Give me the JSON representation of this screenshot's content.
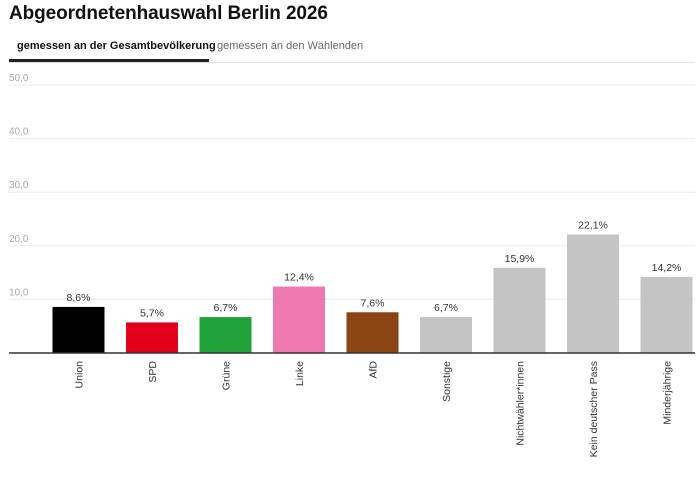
{
  "title": "Abgeordnetenhauswahl Berlin 2026",
  "tabs": [
    {
      "label": "gemessen an der Gesamtbevölkerung",
      "active": true
    },
    {
      "label": "gemessen an den Wählenden",
      "active": false
    }
  ],
  "chart_data": {
    "type": "bar",
    "categories": [
      "Union",
      "SPD",
      "Grüne",
      "Linke",
      "AfD",
      "Sonstige",
      "Nichtwähler*innen",
      "Kein deutscher Pass",
      "Minderjährige"
    ],
    "values": [
      8.6,
      5.7,
      6.7,
      12.4,
      7.6,
      6.7,
      15.9,
      22.1,
      14.2
    ],
    "data_labels": [
      "8,6%",
      "5,7%",
      "6,7%",
      "12,4%",
      "7,6%",
      "6,7%",
      "15,9%",
      "22,1%",
      "14,2%"
    ],
    "colors": [
      "#000000",
      "#e3001b",
      "#1fa23a",
      "#f078b0",
      "#8b4513",
      "#c4c4c4",
      "#c4c4c4",
      "#c4c4c4",
      "#c4c4c4"
    ],
    "yticks": [
      10,
      20,
      30,
      40,
      50
    ],
    "ytick_labels": [
      "10,0",
      "20,0",
      "30,0",
      "40,0",
      "50,0"
    ],
    "ylim": [
      0,
      50
    ],
    "grid": true
  }
}
